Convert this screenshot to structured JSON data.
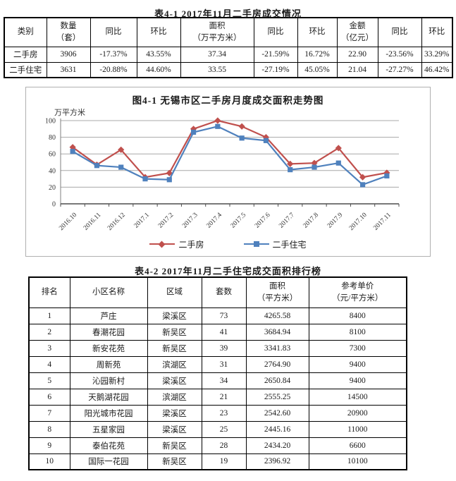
{
  "titles": {
    "table1": "表4-1  2017年11月二手房成交情况",
    "table2": "表4-2  2017年11月二手住宅成交面积排行榜"
  },
  "table1": {
    "headers": [
      "类别",
      "数量\n（套）",
      "同比",
      "环比",
      "面积\n（万平方米）",
      "同比",
      "环比",
      "金额\n（亿元）",
      "同比",
      "环比"
    ],
    "rows": [
      [
        "二手房",
        "3906",
        "-17.37%",
        "43.55%",
        "37.34",
        "-21.59%",
        "16.72%",
        "22.90",
        "-23.56%",
        "33.29%"
      ],
      [
        "二手住宅",
        "3631",
        "-20.88%",
        "44.60%",
        "33.55",
        "-27.19%",
        "45.05%",
        "21.04",
        "-27.27%",
        "46.42%"
      ]
    ]
  },
  "chart_data": {
    "type": "line",
    "title": "图4-1  无锡市区二手房月度成交面积走势图",
    "ylabel": "万平方米",
    "xlabel": "",
    "categories": [
      "2016.10",
      "2016.11",
      "2016.12",
      "2017.1",
      "2017.2",
      "2017.3",
      "2017.4",
      "2017.5",
      "2017.6",
      "2017.7",
      "2017.8",
      "2017.9",
      "2017.10",
      "2017.11"
    ],
    "series": [
      {
        "name": "二手房",
        "color": "#C0504D",
        "marker": "diamond",
        "values": [
          68,
          47,
          65,
          32,
          37,
          90,
          100,
          93,
          80,
          48,
          49,
          67,
          32,
          37.34
        ]
      },
      {
        "name": "二手住宅",
        "color": "#4F81BD",
        "marker": "square",
        "values": [
          63,
          46,
          44,
          30,
          29,
          86,
          93,
          79,
          76,
          41,
          44,
          49,
          23,
          33.55
        ]
      }
    ],
    "ylim": [
      0,
      100
    ],
    "yticks": [
      0,
      20,
      40,
      60,
      80,
      100
    ],
    "grid": true,
    "legend_position": "bottom",
    "colors": {
      "grid": "#a8a8a8",
      "axis": "#4d4d4d",
      "tick_label": "#333333"
    }
  },
  "table2": {
    "headers": [
      "排名",
      "小区名称",
      "区域",
      "套数",
      "面积\n（平方米）",
      "参考单价\n（元/平方米）"
    ],
    "rows": [
      [
        "1",
        "芦庄",
        "梁溪区",
        "73",
        "4265.58",
        "8400"
      ],
      [
        "2",
        "春潮花园",
        "新吴区",
        "41",
        "3684.94",
        "8100"
      ],
      [
        "3",
        "新安花苑",
        "新吴区",
        "39",
        "3341.83",
        "7300"
      ],
      [
        "4",
        "周新苑",
        "滨湖区",
        "31",
        "2764.90",
        "9400"
      ],
      [
        "5",
        "沁园新村",
        "梁溪区",
        "34",
        "2650.84",
        "9400"
      ],
      [
        "6",
        "天鹅湖花园",
        "滨湖区",
        "21",
        "2555.25",
        "14500"
      ],
      [
        "7",
        "阳光城市花园",
        "梁溪区",
        "23",
        "2542.60",
        "20900"
      ],
      [
        "8",
        "五星家园",
        "梁溪区",
        "25",
        "2445.16",
        "11000"
      ],
      [
        "9",
        "泰伯花苑",
        "新吴区",
        "28",
        "2434.20",
        "6600"
      ],
      [
        "10",
        "国际一花园",
        "新吴区",
        "19",
        "2396.92",
        "10100"
      ]
    ]
  }
}
